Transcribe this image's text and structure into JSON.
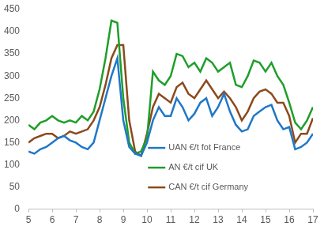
{
  "chart_data": {
    "type": "line",
    "x": [
      5,
      5.25,
      5.5,
      5.75,
      6,
      6.25,
      6.5,
      6.75,
      7,
      7.25,
      7.5,
      7.75,
      8,
      8.25,
      8.5,
      8.75,
      9,
      9.25,
      9.5,
      9.75,
      10,
      10.25,
      10.5,
      10.75,
      11,
      11.25,
      11.5,
      11.75,
      12,
      12.25,
      12.5,
      12.75,
      13,
      13.25,
      13.5,
      13.75,
      14,
      14.25,
      14.5,
      14.75,
      15,
      15.25,
      15.5,
      15.75,
      16,
      16.25,
      16.5,
      16.75,
      17
    ],
    "series": [
      {
        "name": "UAN €/t fot France",
        "color": "#1f78c8",
        "values": [
          130,
          125,
          135,
          140,
          150,
          160,
          165,
          155,
          150,
          140,
          135,
          150,
          200,
          250,
          300,
          340,
          200,
          140,
          125,
          120,
          150,
          200,
          230,
          210,
          210,
          250,
          230,
          200,
          215,
          240,
          250,
          210,
          230,
          260,
          220,
          190,
          175,
          180,
          210,
          220,
          230,
          235,
          200,
          180,
          185,
          135,
          140,
          150,
          170
        ]
      },
      {
        "name": "AN €/t cif UK",
        "color": "#1e9e2a",
        "values": [
          190,
          180,
          195,
          200,
          210,
          200,
          195,
          200,
          195,
          210,
          200,
          220,
          270,
          340,
          425,
          420,
          250,
          150,
          125,
          130,
          160,
          310,
          290,
          280,
          300,
          350,
          345,
          320,
          330,
          310,
          340,
          330,
          310,
          320,
          330,
          280,
          275,
          300,
          335,
          330,
          310,
          330,
          300,
          280,
          240,
          195,
          180,
          200,
          230
        ]
      },
      {
        "name": "CAN €/t cif Germany",
        "color": "#8b4a1c",
        "values": [
          150,
          160,
          165,
          170,
          170,
          160,
          165,
          175,
          170,
          175,
          180,
          200,
          230,
          280,
          340,
          370,
          370,
          200,
          130,
          120,
          170,
          230,
          260,
          250,
          240,
          275,
          285,
          260,
          250,
          270,
          290,
          270,
          250,
          265,
          250,
          230,
          200,
          220,
          250,
          265,
          270,
          260,
          240,
          240,
          210,
          150,
          170,
          170,
          205
        ]
      }
    ],
    "xlim": [
      5,
      17
    ],
    "xticks": [
      5,
      6,
      7,
      8,
      9,
      10,
      11,
      12,
      13,
      14,
      15,
      16,
      17
    ],
    "ylim": [
      0,
      450
    ],
    "yticks": [
      0,
      50,
      100,
      150,
      200,
      250,
      300,
      350,
      400,
      450
    ],
    "grid": false,
    "legend": "lower center"
  }
}
